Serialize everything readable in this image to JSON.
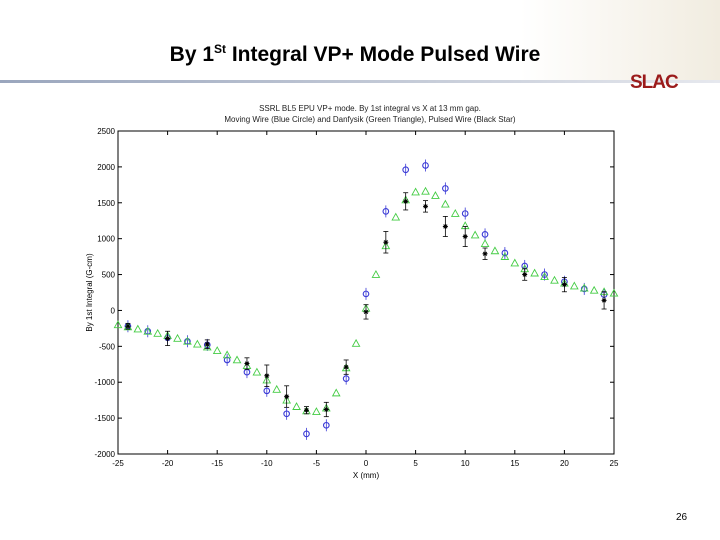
{
  "slide": {
    "title_main": "By 1",
    "title_sup": "St",
    "title_rest": " Integral VP+ Mode Pulsed Wire",
    "logo_text": "SLAC",
    "page_number": "26"
  },
  "colors": {
    "moving_wire": "#3a3ad6",
    "danfysik": "#44cc44",
    "pulsed_wire": "#000000",
    "logo": "#9b1b1b"
  },
  "chart_data": {
    "type": "scatter",
    "title": "SSRL BL5 EPU VP+ mode.  By 1st integral vs X at 13 mm gap.",
    "subtitle": "Moving Wire (Blue Circle) and Danfysik (Green Triangle), Pulsed Wire (Black Star)",
    "xlabel": "X (mm)",
    "ylabel": "By 1st Integral (G-cm)",
    "xlim": [
      -25,
      25
    ],
    "ylim": [
      -2000,
      2500
    ],
    "x_ticks": [
      "-25",
      "-20",
      "-15",
      "-10",
      "-5",
      "0",
      "5",
      "10",
      "15",
      "20",
      "25"
    ],
    "y_ticks": [
      "2500",
      "2000",
      "1500",
      "1000",
      "500",
      "0",
      "-500",
      "-1000",
      "-1500",
      "-2000"
    ],
    "grid": false,
    "series": [
      {
        "name": "Moving Wire (Blue Circle)",
        "marker": "circle",
        "color": "#3a3ad6",
        "x": [
          -24,
          -22,
          -20,
          -18,
          -16,
          -14,
          -12,
          -10,
          -8,
          -6,
          -4,
          -2,
          0,
          2,
          4,
          6,
          8,
          10,
          12,
          14,
          16,
          18,
          20,
          22,
          24
        ],
        "y": [
          -220,
          -290,
          -380,
          -430,
          -480,
          -690,
          -860,
          -1120,
          -1440,
          -1720,
          -1600,
          -950,
          230,
          1380,
          1960,
          2020,
          1700,
          1350,
          1060,
          800,
          620,
          500,
          400,
          300,
          220
        ]
      },
      {
        "name": "Danfysik (Green Triangle)",
        "marker": "triangle",
        "color": "#44cc44",
        "x": [
          -25,
          -24,
          -23,
          -22,
          -21,
          -20,
          -19,
          -18,
          -17,
          -16,
          -15,
          -14,
          -13,
          -12,
          -11,
          -10,
          -9,
          -8,
          -7,
          -6,
          -5,
          -4,
          -3,
          -2,
          -1,
          0,
          1,
          2,
          3,
          4,
          5,
          6,
          7,
          8,
          9,
          10,
          11,
          12,
          13,
          14,
          15,
          16,
          17,
          18,
          19,
          20,
          21,
          22,
          23,
          24,
          25
        ],
        "y": [
          -200,
          -230,
          -260,
          -290,
          -320,
          -350,
          -390,
          -430,
          -470,
          -510,
          -560,
          -620,
          -690,
          -770,
          -860,
          -970,
          -1100,
          -1250,
          -1340,
          -1400,
          -1410,
          -1360,
          -1150,
          -800,
          -460,
          30,
          500,
          900,
          1300,
          1540,
          1650,
          1660,
          1600,
          1480,
          1350,
          1180,
          1050,
          930,
          830,
          750,
          660,
          580,
          520,
          470,
          420,
          380,
          340,
          310,
          280,
          260,
          240
        ]
      },
      {
        "name": "Pulsed Wire (Black Star)",
        "marker": "star",
        "color": "#000000",
        "x": [
          -24,
          -20,
          -16,
          -12,
          -10,
          -8,
          -6,
          -4,
          -2,
          0,
          2,
          4,
          6,
          8,
          10,
          12,
          16,
          20,
          24
        ],
        "y": [
          -220,
          -390,
          -470,
          -740,
          -910,
          -1200,
          -1390,
          -1380,
          -790,
          -20,
          950,
          1520,
          1450,
          1170,
          1030,
          790,
          500,
          360,
          140
        ],
        "error": [
          40,
          100,
          60,
          80,
          150,
          150,
          50,
          100,
          100,
          100,
          150,
          120,
          80,
          140,
          140,
          80,
          80,
          100,
          120
        ]
      }
    ]
  }
}
